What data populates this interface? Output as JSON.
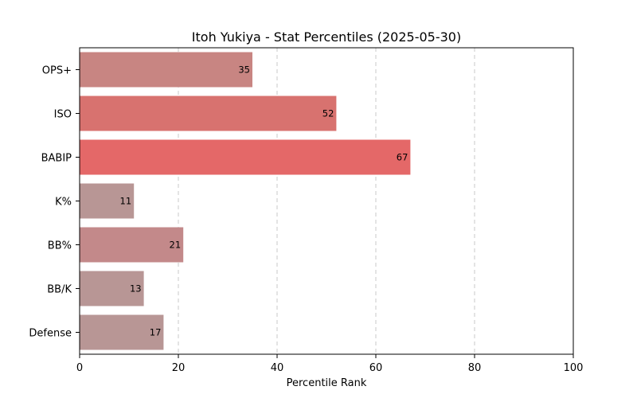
{
  "chart_data": {
    "type": "bar",
    "orientation": "horizontal",
    "title": "Itoh Yukiya - Stat Percentiles (2025-05-30)",
    "xlabel": "Percentile Rank",
    "ylabel": "",
    "xlim": [
      0,
      100
    ],
    "x_ticks": [
      "0",
      "20",
      "40",
      "60",
      "80",
      "100"
    ],
    "grid": "vertical dashed",
    "categories": [
      "OPS+",
      "ISO",
      "BABIP",
      "K%",
      "BB%",
      "BB/K",
      "Defense"
    ],
    "values": [
      35,
      52,
      67,
      11,
      21,
      13,
      17
    ],
    "value_labels": [
      "35",
      "52",
      "67",
      "11",
      "21",
      "13",
      "17"
    ],
    "bar_colors": [
      "#c88582",
      "#d8726f",
      "#e46868",
      "#b89695",
      "#c3898a",
      "#b89695",
      "#b89695"
    ]
  }
}
